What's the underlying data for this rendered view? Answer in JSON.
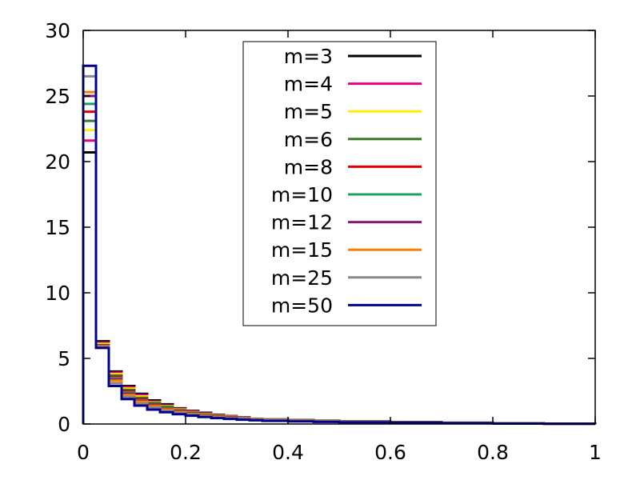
{
  "chart_data": {
    "type": "line",
    "style": "step-histogram",
    "xlim": [
      0,
      1
    ],
    "ylim": [
      0,
      30
    ],
    "xticks": [
      0,
      0.2,
      0.4,
      0.6,
      0.8,
      1
    ],
    "xtick_labels": [
      "0",
      "0.2",
      "0.4",
      "0.6",
      "0.8",
      "1"
    ],
    "yticks": [
      0,
      5,
      10,
      15,
      20,
      25,
      30
    ],
    "ytick_labels": [
      "0",
      "5",
      "10",
      "15",
      "20",
      "25",
      "30"
    ],
    "grid": false,
    "legend_position": "top-center",
    "bin_edges": [
      0,
      0.025,
      0.05,
      0.075,
      0.1,
      0.125,
      0.15,
      0.175,
      0.2,
      0.225,
      0.25,
      0.275,
      0.3,
      0.325,
      0.35,
      0.4,
      0.45,
      0.5,
      0.6,
      0.7,
      0.8,
      0.9,
      1.0
    ],
    "series": [
      {
        "name": "m=3",
        "color": "#000000",
        "values": [
          20.7,
          6.3,
          4.0,
          2.9,
          2.3,
          1.8,
          1.5,
          1.2,
          1.0,
          0.85,
          0.7,
          0.6,
          0.5,
          0.4,
          0.35,
          0.3,
          0.25,
          0.2,
          0.15,
          0.1,
          0.05,
          0.02
        ]
      },
      {
        "name": "m=4",
        "color": "#e6008a",
        "values": [
          21.6,
          6.2,
          3.9,
          2.8,
          2.2,
          1.7,
          1.4,
          1.15,
          0.95,
          0.8,
          0.67,
          0.57,
          0.48,
          0.4,
          0.33,
          0.28,
          0.23,
          0.19,
          0.14,
          0.09,
          0.05,
          0.02
        ]
      },
      {
        "name": "m=5",
        "color": "#ffee00",
        "values": [
          22.4,
          6.1,
          3.8,
          2.7,
          2.1,
          1.65,
          1.35,
          1.1,
          0.9,
          0.76,
          0.64,
          0.54,
          0.46,
          0.38,
          0.32,
          0.27,
          0.22,
          0.18,
          0.13,
          0.09,
          0.05,
          0.02
        ]
      },
      {
        "name": "m=6",
        "color": "#3a7a26",
        "values": [
          23.1,
          6.0,
          3.7,
          2.6,
          2.0,
          1.6,
          1.3,
          1.05,
          0.87,
          0.73,
          0.61,
          0.52,
          0.44,
          0.37,
          0.31,
          0.26,
          0.21,
          0.17,
          0.13,
          0.08,
          0.05,
          0.02
        ]
      },
      {
        "name": "m=8",
        "color": "#e00000",
        "values": [
          23.8,
          6.0,
          3.6,
          2.5,
          1.9,
          1.5,
          1.2,
          1.0,
          0.83,
          0.7,
          0.59,
          0.5,
          0.42,
          0.36,
          0.3,
          0.25,
          0.2,
          0.17,
          0.12,
          0.08,
          0.05,
          0.02
        ]
      },
      {
        "name": "m=10",
        "color": "#20a060",
        "values": [
          24.4,
          5.95,
          3.5,
          2.4,
          1.8,
          1.45,
          1.17,
          0.96,
          0.8,
          0.67,
          0.56,
          0.48,
          0.41,
          0.35,
          0.29,
          0.24,
          0.2,
          0.16,
          0.12,
          0.08,
          0.05,
          0.02
        ]
      },
      {
        "name": "m=12",
        "color": "#8b1a6b",
        "values": [
          25.0,
          5.9,
          3.4,
          2.3,
          1.75,
          1.4,
          1.13,
          0.93,
          0.77,
          0.65,
          0.55,
          0.47,
          0.4,
          0.34,
          0.28,
          0.24,
          0.19,
          0.16,
          0.12,
          0.08,
          0.05,
          0.02
        ]
      },
      {
        "name": "m=15",
        "color": "#ff8000",
        "values": [
          25.3,
          5.9,
          3.3,
          2.2,
          1.7,
          1.35,
          1.1,
          0.9,
          0.75,
          0.63,
          0.53,
          0.45,
          0.39,
          0.33,
          0.28,
          0.23,
          0.19,
          0.15,
          0.11,
          0.08,
          0.05,
          0.02
        ]
      },
      {
        "name": "m=25",
        "color": "#888888",
        "values": [
          26.5,
          5.85,
          3.1,
          2.05,
          1.55,
          1.25,
          1.0,
          0.83,
          0.7,
          0.59,
          0.5,
          0.43,
          0.37,
          0.31,
          0.27,
          0.22,
          0.18,
          0.15,
          0.11,
          0.07,
          0.05,
          0.02
        ]
      },
      {
        "name": "m=50",
        "color": "#000090",
        "values": [
          27.3,
          5.8,
          2.9,
          1.9,
          1.4,
          1.1,
          0.9,
          0.75,
          0.63,
          0.53,
          0.45,
          0.39,
          0.33,
          0.28,
          0.24,
          0.2,
          0.16,
          0.13,
          0.1,
          0.07,
          0.04,
          0.02
        ]
      }
    ]
  }
}
